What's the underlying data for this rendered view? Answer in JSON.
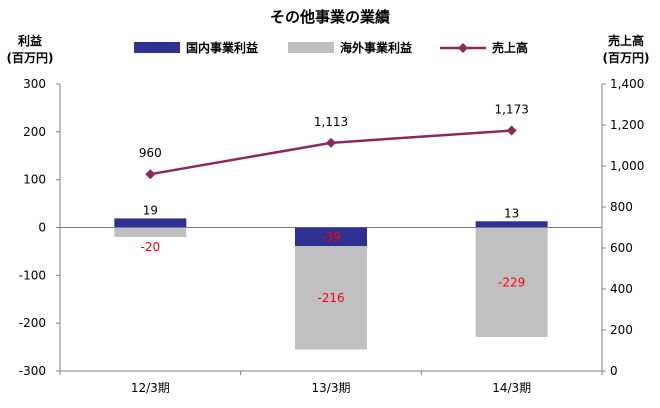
{
  "chart_data": {
    "type": "bar+line",
    "title": "その他事業の業績",
    "left_axis_label": [
      "利益",
      "(百万円)"
    ],
    "right_axis_label": [
      "売上高",
      "(百万円)"
    ],
    "categories": [
      "12/3期",
      "13/3期",
      "14/3期"
    ],
    "left_ylim": [
      -300,
      300
    ],
    "left_ticks": [
      300,
      200,
      100,
      0,
      -100,
      -200,
      -300
    ],
    "right_ylim": [
      0,
      1400
    ],
    "right_ticks": [
      1400,
      1200,
      1000,
      800,
      600,
      400,
      200,
      0
    ],
    "series": [
      {
        "name": "国内事業利益",
        "type": "bar",
        "axis": "left",
        "values": [
          19,
          -39,
          13
        ],
        "labels": [
          "19",
          "-39",
          "13"
        ]
      },
      {
        "name": "海外事業利益",
        "type": "bar",
        "axis": "left",
        "values": [
          -20,
          -216,
          -229
        ],
        "labels": [
          "-20",
          "-216",
          "-229"
        ]
      },
      {
        "name": "売上高",
        "type": "line",
        "axis": "right",
        "values": [
          960,
          1113,
          1173
        ],
        "labels": [
          "960",
          "1,113",
          "1,173"
        ]
      }
    ],
    "legend_position": "top",
    "grid": false,
    "colors": {
      "domestic": "#2e3192",
      "overseas": "#c0c0c0",
      "sales": "#8b2a5a",
      "negative_label": "#ff0000"
    }
  }
}
